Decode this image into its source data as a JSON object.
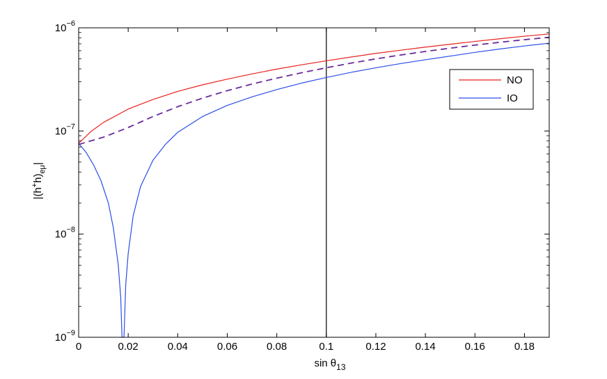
{
  "chart_data": {
    "type": "line",
    "xlabel": "sin θ",
    "xlabel_sub": "13",
    "ylabel_parts": {
      "open": "|(h",
      "sup": "+",
      "mid": "h)",
      "sub": "eμ",
      "close": "|"
    },
    "xlim": [
      0,
      0.19
    ],
    "ylim": [
      1e-09,
      1e-06
    ],
    "yscale": "log",
    "x_ticks": [
      0,
      0.02,
      0.04,
      0.06,
      0.08,
      0.1,
      0.12,
      0.14,
      0.16,
      0.18
    ],
    "x_tick_labels": [
      "0",
      "0.02",
      "0.04",
      "0.06",
      "0.08",
      "0.1",
      "0.12",
      "0.14",
      "0.16",
      "0.18"
    ],
    "y_ticks": [
      {
        "value": 1e-09,
        "base": "10",
        "exp": "−9"
      },
      {
        "value": 1e-08,
        "base": "10",
        "exp": "−8"
      },
      {
        "value": 1e-07,
        "base": "10",
        "exp": "−7"
      },
      {
        "value": 1e-06,
        "base": "10",
        "exp": "−6"
      }
    ],
    "legend_position": "top-right",
    "vertical_line_x": 0.1,
    "series": [
      {
        "name": "NO",
        "color": "#e8201c",
        "style": "solid",
        "points": [
          [
            0,
            7.6e-08
          ],
          [
            0.005,
            9.9e-08
          ],
          [
            0.01,
            1.21e-07
          ],
          [
            0.02,
            1.63e-07
          ],
          [
            0.03,
            2.02e-07
          ],
          [
            0.04,
            2.42e-07
          ],
          [
            0.05,
            2.8e-07
          ],
          [
            0.06,
            3.18e-07
          ],
          [
            0.07,
            3.57e-07
          ],
          [
            0.08,
            3.98e-07
          ],
          [
            0.09,
            4.38e-07
          ],
          [
            0.1,
            4.79e-07
          ],
          [
            0.11,
            5.21e-07
          ],
          [
            0.12,
            5.65e-07
          ],
          [
            0.13,
            6.07e-07
          ],
          [
            0.14,
            6.5e-07
          ],
          [
            0.15,
            6.93e-07
          ],
          [
            0.16,
            7.38e-07
          ],
          [
            0.17,
            7.83e-07
          ],
          [
            0.18,
            8.29e-07
          ],
          [
            0.19,
            8.72e-07
          ]
        ]
      },
      {
        "name": "IO",
        "color": "#2a4ee8",
        "style": "solid",
        "points": [
          [
            0,
            7.6e-08
          ],
          [
            0.003,
            6.2e-08
          ],
          [
            0.006,
            4.7e-08
          ],
          [
            0.009,
            3.3e-08
          ],
          [
            0.012,
            2e-08
          ],
          [
            0.014,
            1.15e-08
          ],
          [
            0.016,
            5e-09
          ],
          [
            0.017,
            2.4e-09
          ],
          [
            0.0175,
            1e-09
          ],
          [
            0.0183,
            1e-09
          ],
          [
            0.0188,
            2.3e-09
          ],
          [
            0.019,
            3.2e-09
          ],
          [
            0.02,
            6.5e-09
          ],
          [
            0.022,
            1.5e-08
          ],
          [
            0.025,
            2.9e-08
          ],
          [
            0.03,
            5.2e-08
          ],
          [
            0.035,
            7.4e-08
          ],
          [
            0.04,
            9.7e-08
          ],
          [
            0.05,
            1.38e-07
          ],
          [
            0.06,
            1.77e-07
          ],
          [
            0.07,
            2.14e-07
          ],
          [
            0.08,
            2.52e-07
          ],
          [
            0.09,
            2.91e-07
          ],
          [
            0.1,
            3.3e-07
          ],
          [
            0.11,
            3.7e-07
          ],
          [
            0.12,
            4.1e-07
          ],
          [
            0.13,
            4.5e-07
          ],
          [
            0.14,
            4.9e-07
          ],
          [
            0.15,
            5.32e-07
          ],
          [
            0.16,
            5.78e-07
          ],
          [
            0.17,
            6.23e-07
          ],
          [
            0.18,
            6.67e-07
          ],
          [
            0.19,
            7.1e-07
          ]
        ]
      },
      {
        "color": "#6a2a9a",
        "style": "dashed",
        "points": [
          [
            0,
            7.4e-08
          ],
          [
            0.01,
            8.7e-08
          ],
          [
            0.02,
            1.08e-07
          ],
          [
            0.03,
            1.38e-07
          ],
          [
            0.04,
            1.72e-07
          ],
          [
            0.05,
            2.08e-07
          ],
          [
            0.06,
            2.46e-07
          ],
          [
            0.07,
            2.85e-07
          ],
          [
            0.08,
            3.25e-07
          ],
          [
            0.09,
            3.67e-07
          ],
          [
            0.1,
            4.1e-07
          ],
          [
            0.11,
            4.55e-07
          ],
          [
            0.12,
            5e-07
          ],
          [
            0.13,
            5.45e-07
          ],
          [
            0.14,
            5.9e-07
          ],
          [
            0.15,
            6.35e-07
          ],
          [
            0.16,
            6.8e-07
          ],
          [
            0.17,
            7.24e-07
          ],
          [
            0.18,
            7.67e-07
          ],
          [
            0.19,
            8.1e-07
          ]
        ]
      }
    ]
  }
}
